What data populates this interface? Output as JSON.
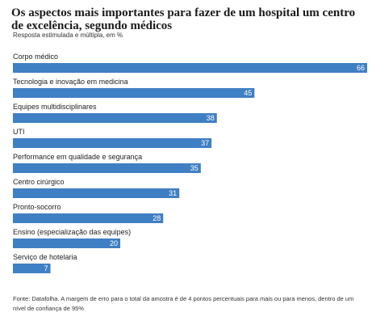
{
  "chart_data": {
    "type": "bar",
    "orientation": "horizontal",
    "title": "Os aspectos mais importantes para fazer de um hospital um centro de excelência, segundo médicos",
    "subtitle": "Resposta estimulada e múltipla, em %",
    "categories": [
      "Corpo médico",
      "Tecnologia e inovação em medicina",
      "Equipes multidisciplinares",
      "UTI",
      "Performance em qualidade e segurança",
      "Centro cirúrgico",
      "Pronto-socorro",
      "Ensino (especialização das equipes)",
      "Serviço de hotelaria"
    ],
    "values": [
      66,
      45,
      38,
      37,
      35,
      31,
      28,
      20,
      7
    ],
    "xlim": [
      0,
      66
    ],
    "grid": false,
    "bar_color": "#3f7fc4"
  },
  "footnote": "Fonte: Datafolha. A margem de erro para o total da amostra é de 4 pontos percentuais para mais ou para menos, dentro de um nível de confiança de 95%"
}
